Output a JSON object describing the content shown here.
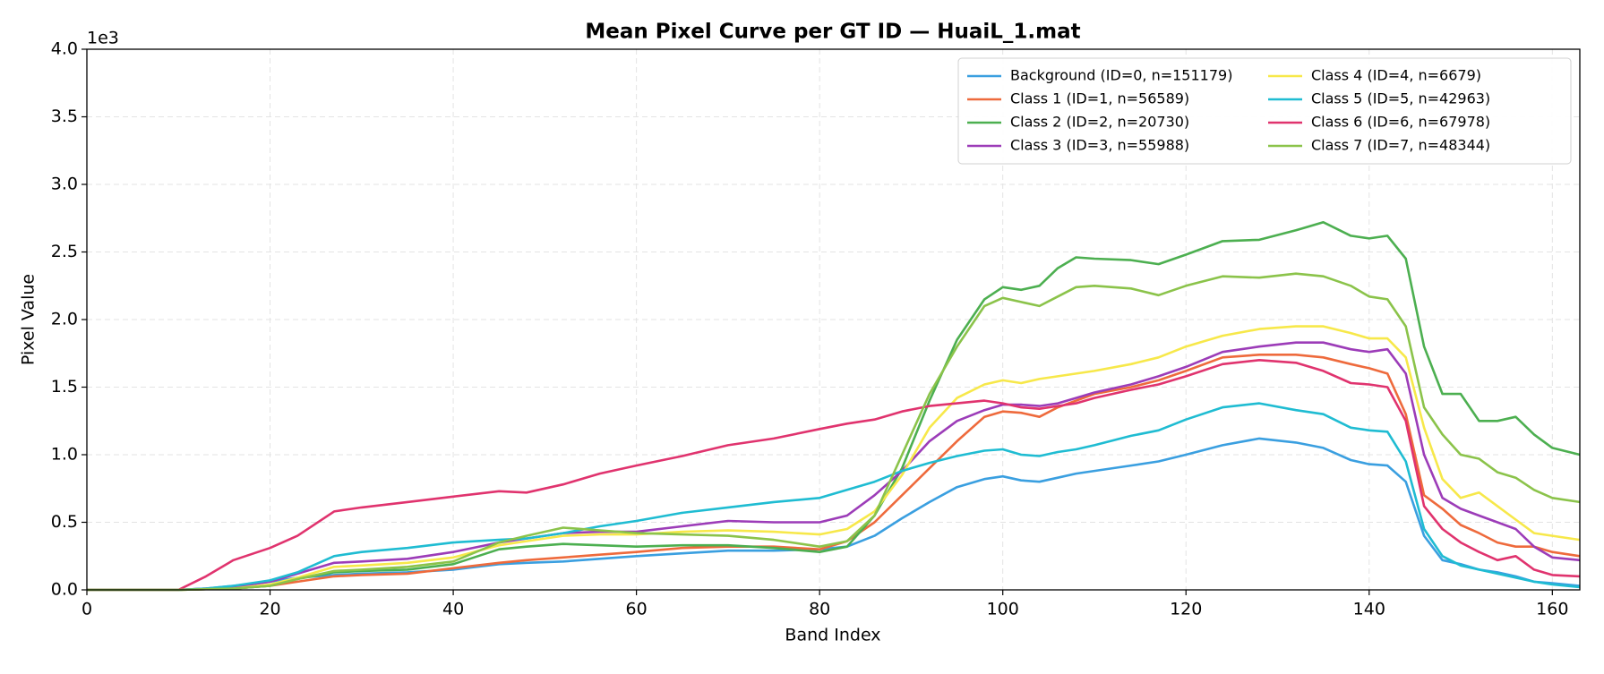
{
  "chart_data": {
    "type": "line",
    "title": "Mean Pixel Curve per GT ID — HuaiL_1.mat",
    "x_label": "Band Index",
    "y_label": "Pixel Value",
    "y_offset_label": "1e3",
    "xlim": [
      0,
      163
    ],
    "xticks": [
      0,
      20,
      40,
      60,
      80,
      100,
      120,
      140,
      160
    ],
    "ylim": [
      0,
      4
    ],
    "yticks": [
      {
        "value": 0,
        "label": "0.0"
      },
      0.5,
      {
        "value": 1,
        "label": "1.0"
      },
      1.5,
      {
        "value": 2,
        "label": "2.0"
      },
      2.5,
      {
        "value": 3,
        "label": "3.0"
      },
      3.5,
      {
        "value": 4,
        "label": "4.0"
      }
    ],
    "grid": true,
    "legend": "upper right",
    "legend_columns": 2,
    "x": [
      0,
      10,
      13,
      16,
      20,
      23,
      27,
      30,
      35,
      40,
      45,
      48,
      52,
      56,
      60,
      65,
      70,
      75,
      80,
      83,
      86,
      89,
      92,
      95,
      98,
      100,
      102,
      104,
      106,
      108,
      110,
      114,
      117,
      120,
      124,
      128,
      132,
      135,
      138,
      140,
      142,
      144,
      146,
      148,
      150,
      152,
      154,
      156,
      158,
      160,
      163
    ],
    "series": [
      {
        "name": "Background (ID=0, n=151179)",
        "color": "#3a9fe0",
        "values": [
          0,
          0,
          0.01,
          0.03,
          0.06,
          0.09,
          0.11,
          0.12,
          0.13,
          0.15,
          0.19,
          0.2,
          0.21,
          0.23,
          0.25,
          0.27,
          0.29,
          0.29,
          0.3,
          0.32,
          0.4,
          0.53,
          0.65,
          0.76,
          0.82,
          0.84,
          0.81,
          0.8,
          0.83,
          0.86,
          0.88,
          0.92,
          0.95,
          1.0,
          1.07,
          1.12,
          1.09,
          1.05,
          0.96,
          0.93,
          0.92,
          0.8,
          0.4,
          0.22,
          0.19,
          0.15,
          0.13,
          0.1,
          0.06,
          0.05,
          0.03
        ]
      },
      {
        "name": "Class 1 (ID=1, n=56589)",
        "color": "#ee6a3c",
        "values": [
          0,
          0,
          0.005,
          0.01,
          0.03,
          0.06,
          0.1,
          0.11,
          0.12,
          0.16,
          0.2,
          0.22,
          0.24,
          0.26,
          0.28,
          0.31,
          0.32,
          0.32,
          0.3,
          0.36,
          0.5,
          0.7,
          0.9,
          1.1,
          1.28,
          1.32,
          1.31,
          1.28,
          1.35,
          1.4,
          1.45,
          1.5,
          1.55,
          1.62,
          1.72,
          1.74,
          1.74,
          1.72,
          1.67,
          1.64,
          1.6,
          1.3,
          0.7,
          0.6,
          0.48,
          0.42,
          0.35,
          0.32,
          0.32,
          0.28,
          0.25
        ]
      },
      {
        "name": "Class 2 (ID=2, n=20730)",
        "color": "#4caf50",
        "values": [
          0,
          0,
          0.005,
          0.01,
          0.03,
          0.08,
          0.13,
          0.14,
          0.15,
          0.19,
          0.3,
          0.32,
          0.34,
          0.33,
          0.32,
          0.33,
          0.33,
          0.31,
          0.28,
          0.32,
          0.55,
          0.9,
          1.4,
          1.85,
          2.15,
          2.24,
          2.22,
          2.25,
          2.38,
          2.46,
          2.45,
          2.44,
          2.41,
          2.48,
          2.58,
          2.59,
          2.66,
          2.72,
          2.62,
          2.6,
          2.62,
          2.45,
          1.8,
          1.45,
          1.45,
          1.25,
          1.25,
          1.28,
          1.15,
          1.05,
          1.0
        ]
      },
      {
        "name": "Class 3 (ID=3, n=55988)",
        "color": "#9c3cb8",
        "values": [
          0,
          0,
          0.01,
          0.02,
          0.06,
          0.12,
          0.2,
          0.21,
          0.23,
          0.28,
          0.35,
          0.38,
          0.42,
          0.43,
          0.43,
          0.47,
          0.51,
          0.5,
          0.5,
          0.55,
          0.7,
          0.88,
          1.1,
          1.25,
          1.33,
          1.37,
          1.37,
          1.36,
          1.38,
          1.42,
          1.46,
          1.52,
          1.58,
          1.65,
          1.76,
          1.8,
          1.83,
          1.83,
          1.78,
          1.76,
          1.78,
          1.6,
          1.0,
          0.68,
          0.6,
          0.55,
          0.5,
          0.45,
          0.32,
          0.24,
          0.22
        ]
      },
      {
        "name": "Class 4 (ID=4, n=6679)",
        "color": "#f7e84a",
        "values": [
          0,
          0,
          0.005,
          0.01,
          0.04,
          0.09,
          0.17,
          0.18,
          0.2,
          0.24,
          0.33,
          0.36,
          0.4,
          0.41,
          0.41,
          0.43,
          0.44,
          0.43,
          0.41,
          0.45,
          0.58,
          0.85,
          1.2,
          1.42,
          1.52,
          1.55,
          1.53,
          1.56,
          1.58,
          1.6,
          1.62,
          1.67,
          1.72,
          1.8,
          1.88,
          1.93,
          1.95,
          1.95,
          1.9,
          1.86,
          1.86,
          1.72,
          1.2,
          0.82,
          0.68,
          0.72,
          0.62,
          0.52,
          0.42,
          0.4,
          0.37
        ]
      },
      {
        "name": "Class 5 (ID=5, n=42963)",
        "color": "#1fbcd2",
        "values": [
          0,
          0,
          0.01,
          0.03,
          0.07,
          0.13,
          0.25,
          0.28,
          0.31,
          0.35,
          0.37,
          0.38,
          0.42,
          0.47,
          0.51,
          0.57,
          0.61,
          0.65,
          0.68,
          0.74,
          0.8,
          0.88,
          0.94,
          0.99,
          1.03,
          1.04,
          1.0,
          0.99,
          1.02,
          1.04,
          1.07,
          1.14,
          1.18,
          1.26,
          1.35,
          1.38,
          1.33,
          1.3,
          1.2,
          1.18,
          1.17,
          0.95,
          0.45,
          0.25,
          0.18,
          0.15,
          0.12,
          0.09,
          0.06,
          0.04,
          0.02
        ]
      },
      {
        "name": "Class 6 (ID=6, n=67978)",
        "color": "#e0336e",
        "values": [
          0,
          0,
          0.1,
          0.22,
          0.31,
          0.4,
          0.58,
          0.61,
          0.65,
          0.69,
          0.73,
          0.72,
          0.78,
          0.86,
          0.92,
          0.99,
          1.07,
          1.12,
          1.19,
          1.23,
          1.26,
          1.32,
          1.36,
          1.38,
          1.4,
          1.38,
          1.35,
          1.34,
          1.36,
          1.38,
          1.42,
          1.48,
          1.52,
          1.58,
          1.67,
          1.7,
          1.68,
          1.62,
          1.53,
          1.52,
          1.5,
          1.25,
          0.62,
          0.45,
          0.35,
          0.28,
          0.22,
          0.25,
          0.15,
          0.11,
          0.1
        ]
      },
      {
        "name": "Class 7 (ID=7, n=48344)",
        "color": "#8bc34a",
        "values": [
          0,
          0,
          0.005,
          0.01,
          0.03,
          0.08,
          0.14,
          0.15,
          0.17,
          0.21,
          0.35,
          0.4,
          0.46,
          0.44,
          0.42,
          0.41,
          0.4,
          0.37,
          0.32,
          0.36,
          0.55,
          1.0,
          1.45,
          1.8,
          2.1,
          2.16,
          2.13,
          2.1,
          2.17,
          2.24,
          2.25,
          2.23,
          2.18,
          2.25,
          2.32,
          2.31,
          2.34,
          2.32,
          2.25,
          2.17,
          2.15,
          1.95,
          1.35,
          1.15,
          1.0,
          0.97,
          0.87,
          0.83,
          0.74,
          0.68,
          0.65
        ]
      }
    ]
  }
}
